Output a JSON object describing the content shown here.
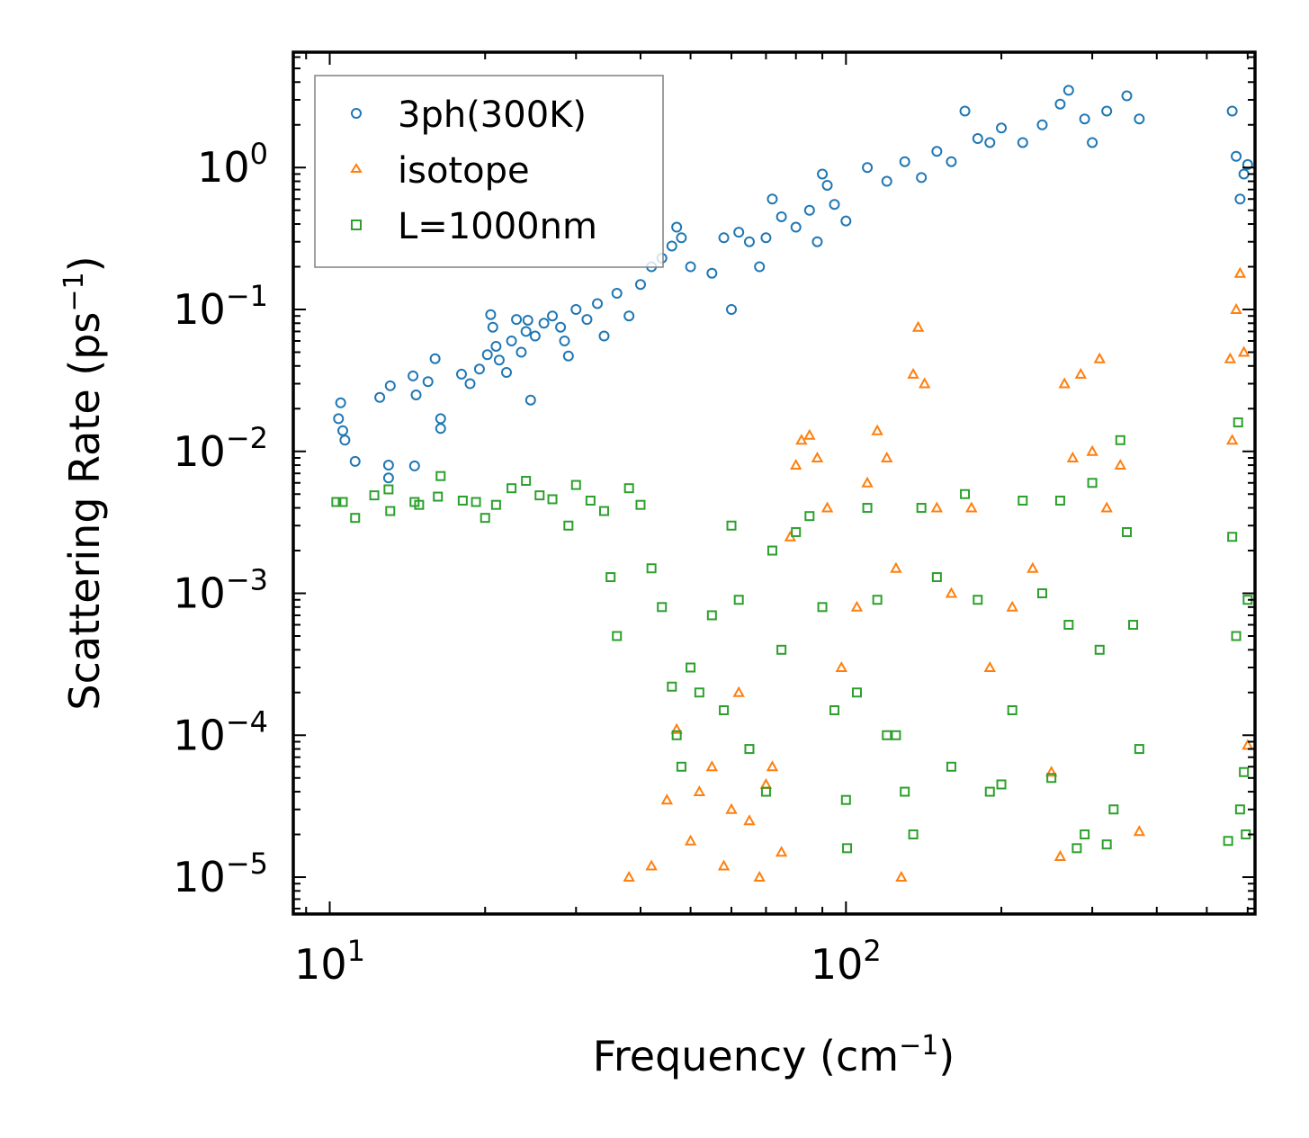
{
  "chart_data": {
    "type": "scatter",
    "xscale": "log",
    "yscale": "log",
    "xlim": [
      8.5,
      620
    ],
    "ylim": [
      5.5e-06,
      6.5
    ],
    "xlabel": "Frequency (cm",
    "xlabel_sup": "−1",
    "xlabel_end": ")",
    "ylabel": "Scattering Rate (ps",
    "ylabel_sup": "−1",
    "ylabel_end": ")",
    "legend_position": "top-left",
    "x_ticks": [
      {
        "value": 10,
        "base": "10",
        "exp": "1"
      },
      {
        "value": 100,
        "base": "10",
        "exp": "2"
      }
    ],
    "y_ticks": [
      {
        "value": 1,
        "base": "10",
        "exp": "0"
      },
      {
        "value": 0.1,
        "base": "10",
        "exp": "−1"
      },
      {
        "value": 0.01,
        "base": "10",
        "exp": "−2"
      },
      {
        "value": 0.001,
        "base": "10",
        "exp": "−3"
      },
      {
        "value": 0.0001,
        "base": "10",
        "exp": "−4"
      },
      {
        "value": 1e-05,
        "base": "10",
        "exp": "−5"
      }
    ],
    "series": [
      {
        "name": "3ph(300K)",
        "marker": "circle",
        "color": "#1f77b4",
        "points": [
          [
            10.5,
            0.022
          ],
          [
            10.4,
            0.017
          ],
          [
            10.6,
            0.014
          ],
          [
            10.7,
            0.012
          ],
          [
            11.2,
            0.0085
          ],
          [
            12.5,
            0.024
          ],
          [
            13.1,
            0.029
          ],
          [
            13.0,
            0.008
          ],
          [
            13.0,
            0.0065
          ],
          [
            14.5,
            0.034
          ],
          [
            14.7,
            0.025
          ],
          [
            14.6,
            0.0079
          ],
          [
            15.5,
            0.031
          ],
          [
            16.0,
            0.045
          ],
          [
            16.4,
            0.017
          ],
          [
            16.4,
            0.0145
          ],
          [
            18.0,
            0.035
          ],
          [
            18.7,
            0.03
          ],
          [
            19.5,
            0.038
          ],
          [
            20.2,
            0.048
          ],
          [
            20.5,
            0.092
          ],
          [
            20.7,
            0.075
          ],
          [
            21.0,
            0.055
          ],
          [
            21.3,
            0.044
          ],
          [
            22.0,
            0.036
          ],
          [
            22.5,
            0.06
          ],
          [
            23.0,
            0.085
          ],
          [
            23.5,
            0.05
          ],
          [
            24.0,
            0.07
          ],
          [
            24.2,
            0.084
          ],
          [
            24.5,
            0.023
          ],
          [
            25.0,
            0.065
          ],
          [
            26.0,
            0.08
          ],
          [
            27.0,
            0.09
          ],
          [
            28.0,
            0.075
          ],
          [
            28.5,
            0.06
          ],
          [
            29.0,
            0.047
          ],
          [
            30.0,
            0.1
          ],
          [
            31.5,
            0.085
          ],
          [
            33.0,
            0.11
          ],
          [
            34.0,
            0.065
          ],
          [
            36.0,
            0.13
          ],
          [
            38.0,
            0.09
          ],
          [
            40.0,
            0.15
          ],
          [
            42.0,
            0.2
          ],
          [
            44.0,
            0.23
          ],
          [
            46.0,
            0.28
          ],
          [
            47.0,
            0.38
          ],
          [
            48.0,
            0.32
          ],
          [
            50.0,
            0.2
          ],
          [
            55.0,
            0.18
          ],
          [
            58.0,
            0.32
          ],
          [
            60.0,
            0.1
          ],
          [
            62.0,
            0.35
          ],
          [
            65.0,
            0.3
          ],
          [
            68.0,
            0.2
          ],
          [
            70.0,
            0.32
          ],
          [
            72.0,
            0.6
          ],
          [
            75.0,
            0.45
          ],
          [
            80.0,
            0.38
          ],
          [
            85.0,
            0.5
          ],
          [
            88.0,
            0.3
          ],
          [
            90.0,
            0.9
          ],
          [
            92.0,
            0.75
          ],
          [
            95.0,
            0.55
          ],
          [
            100.0,
            0.42
          ],
          [
            110.0,
            1.0
          ],
          [
            120.0,
            0.8
          ],
          [
            130.0,
            1.1
          ],
          [
            140.0,
            0.85
          ],
          [
            150.0,
            1.3
          ],
          [
            160.0,
            1.1
          ],
          [
            170.0,
            2.5
          ],
          [
            180.0,
            1.6
          ],
          [
            190.0,
            1.5
          ],
          [
            200.0,
            1.9
          ],
          [
            220.0,
            1.5
          ],
          [
            240.0,
            2.0
          ],
          [
            260.0,
            2.8
          ],
          [
            270.0,
            3.5
          ],
          [
            290.0,
            2.2
          ],
          [
            300.0,
            1.5
          ],
          [
            320.0,
            2.5
          ],
          [
            350.0,
            3.2
          ],
          [
            370.0,
            2.2
          ],
          [
            560.0,
            2.5
          ],
          [
            570.0,
            1.2
          ],
          [
            580.0,
            0.6
          ],
          [
            590.0,
            0.9
          ],
          [
            600.0,
            1.05
          ]
        ]
      },
      {
        "name": "isotope",
        "marker": "triangle",
        "color": "#ff7f0e",
        "points": [
          [
            38.0,
            1e-05
          ],
          [
            42.0,
            1.2e-05
          ],
          [
            45.0,
            3.5e-05
          ],
          [
            47.0,
            0.00011
          ],
          [
            50.0,
            1.8e-05
          ],
          [
            52.0,
            4e-05
          ],
          [
            55.0,
            6e-05
          ],
          [
            58.0,
            1.2e-05
          ],
          [
            60.0,
            3e-05
          ],
          [
            62.0,
            0.0002
          ],
          [
            65.0,
            2.5e-05
          ],
          [
            68.0,
            1e-05
          ],
          [
            70.0,
            4.5e-05
          ],
          [
            72.0,
            6e-05
          ],
          [
            75.0,
            1.5e-05
          ],
          [
            78.0,
            0.0025
          ],
          [
            80.0,
            0.008
          ],
          [
            82.0,
            0.012
          ],
          [
            85.0,
            0.013
          ],
          [
            88.0,
            0.009
          ],
          [
            92.0,
            0.004
          ],
          [
            98.0,
            0.0003
          ],
          [
            105.0,
            0.0008
          ],
          [
            110.0,
            0.006
          ],
          [
            115.0,
            0.014
          ],
          [
            120.0,
            0.009
          ],
          [
            125.0,
            0.0015
          ],
          [
            128.0,
            1e-05
          ],
          [
            135.0,
            0.035
          ],
          [
            138.0,
            0.075
          ],
          [
            142.0,
            0.03
          ],
          [
            150.0,
            0.004
          ],
          [
            160.0,
            0.001
          ],
          [
            175.0,
            0.004
          ],
          [
            190.0,
            0.0003
          ],
          [
            210.0,
            0.0008
          ],
          [
            230.0,
            0.0015
          ],
          [
            250.0,
            5.5e-05
          ],
          [
            260.0,
            1.4e-05
          ],
          [
            265.0,
            0.03
          ],
          [
            275.0,
            0.009
          ],
          [
            285.0,
            0.035
          ],
          [
            300.0,
            0.01
          ],
          [
            310.0,
            0.045
          ],
          [
            320.0,
            0.004
          ],
          [
            340.0,
            0.008
          ],
          [
            370.0,
            2.1e-05
          ],
          [
            555.0,
            0.045
          ],
          [
            560.0,
            0.012
          ],
          [
            570.0,
            0.1
          ],
          [
            580.0,
            0.18
          ],
          [
            590.0,
            0.05
          ],
          [
            600.0,
            8.5e-05
          ]
        ]
      },
      {
        "name": "L=1000nm",
        "marker": "square",
        "color": "#2ca02c",
        "points": [
          [
            10.3,
            0.0044
          ],
          [
            10.6,
            0.0044
          ],
          [
            11.2,
            0.0034
          ],
          [
            12.2,
            0.0049
          ],
          [
            13.0,
            0.0054
          ],
          [
            13.1,
            0.0038
          ],
          [
            14.6,
            0.0044
          ],
          [
            14.9,
            0.0042
          ],
          [
            16.2,
            0.0048
          ],
          [
            16.4,
            0.0067
          ],
          [
            18.1,
            0.0045
          ],
          [
            19.2,
            0.0044
          ],
          [
            20.0,
            0.0034
          ],
          [
            21.0,
            0.0042
          ],
          [
            22.5,
            0.0055
          ],
          [
            24.0,
            0.0062
          ],
          [
            25.5,
            0.0049
          ],
          [
            27.0,
            0.0046
          ],
          [
            29.0,
            0.003
          ],
          [
            30.0,
            0.0058
          ],
          [
            32.0,
            0.0045
          ],
          [
            34.0,
            0.0038
          ],
          [
            35.0,
            0.0013
          ],
          [
            36.0,
            0.0005
          ],
          [
            38.0,
            0.0055
          ],
          [
            40.0,
            0.0042
          ],
          [
            42.0,
            0.0015
          ],
          [
            44.0,
            0.0008
          ],
          [
            46.0,
            0.00022
          ],
          [
            47.0,
            0.0001
          ],
          [
            48.0,
            6e-05
          ],
          [
            50.0,
            0.0003
          ],
          [
            52.0,
            0.0002
          ],
          [
            55.0,
            0.0007
          ],
          [
            58.0,
            0.00015
          ],
          [
            60.0,
            0.003
          ],
          [
            62.0,
            0.0009
          ],
          [
            65.0,
            8e-05
          ],
          [
            70.0,
            4e-05
          ],
          [
            72.0,
            0.002
          ],
          [
            75.0,
            0.0004
          ],
          [
            80.0,
            0.0027
          ],
          [
            85.0,
            0.0035
          ],
          [
            90.0,
            0.0008
          ],
          [
            95.0,
            0.00015
          ],
          [
            100.0,
            3.5e-05
          ],
          [
            100.5,
            1.6e-05
          ],
          [
            105.0,
            0.0002
          ],
          [
            110.0,
            0.004
          ],
          [
            115.0,
            0.0009
          ],
          [
            120.0,
            0.0001
          ],
          [
            125.0,
            0.0001
          ],
          [
            130.0,
            4e-05
          ],
          [
            135.0,
            2e-05
          ],
          [
            140.0,
            0.004
          ],
          [
            150.0,
            0.0013
          ],
          [
            160.0,
            6e-05
          ],
          [
            170.0,
            0.005
          ],
          [
            180.0,
            0.0009
          ],
          [
            190.0,
            4e-05
          ],
          [
            200.0,
            4.5e-05
          ],
          [
            210.0,
            0.00015
          ],
          [
            220.0,
            0.0045
          ],
          [
            240.0,
            0.001
          ],
          [
            250.0,
            5e-05
          ],
          [
            260.0,
            0.0045
          ],
          [
            270.0,
            0.0006
          ],
          [
            280.0,
            1.6e-05
          ],
          [
            290.0,
            2e-05
          ],
          [
            300.0,
            0.006
          ],
          [
            310.0,
            0.0004
          ],
          [
            320.0,
            1.7e-05
          ],
          [
            330.0,
            3e-05
          ],
          [
            340.0,
            0.012
          ],
          [
            350.0,
            0.0027
          ],
          [
            360.0,
            0.0006
          ],
          [
            370.0,
            8e-05
          ],
          [
            550.0,
            1.8e-05
          ],
          [
            560.0,
            0.0025
          ],
          [
            570.0,
            0.0005
          ],
          [
            575.0,
            0.016
          ],
          [
            580.0,
            3e-05
          ],
          [
            590.0,
            5.5e-05
          ],
          [
            600.0,
            0.0009
          ],
          [
            595.0,
            2e-05
          ]
        ]
      }
    ]
  }
}
